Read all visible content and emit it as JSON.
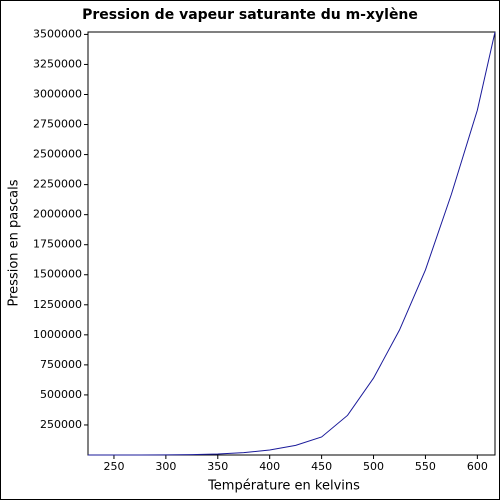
{
  "chart_data": {
    "type": "line",
    "title": "Pression de vapeur saturante du m-xylène",
    "x_label": "Température en kelvins",
    "y_label": "Pression en pascals",
    "x": [
      225,
      250,
      275,
      300,
      325,
      350,
      375,
      400,
      425,
      450,
      475,
      500,
      525,
      550,
      575,
      600,
      617
    ],
    "series": [
      {
        "name": "m-xylène",
        "color": "#1a1a9a",
        "values": [
          10,
          80,
          380,
          1100,
          3200,
          8500,
          19500,
          42000,
          80000,
          150000,
          330000,
          640000,
          1040000,
          1540000,
          2170000,
          2870000,
          3520000
        ]
      }
    ],
    "xlim": [
      225,
      617
    ],
    "ylim": [
      0,
      3520000
    ],
    "xticks": [
      250,
      300,
      350,
      400,
      450,
      500,
      550,
      600
    ],
    "yticks": [
      250000,
      500000,
      750000,
      1000000,
      1250000,
      1500000,
      1750000,
      2000000,
      2250000,
      2500000,
      2750000,
      3000000,
      3250000,
      3500000
    ]
  }
}
